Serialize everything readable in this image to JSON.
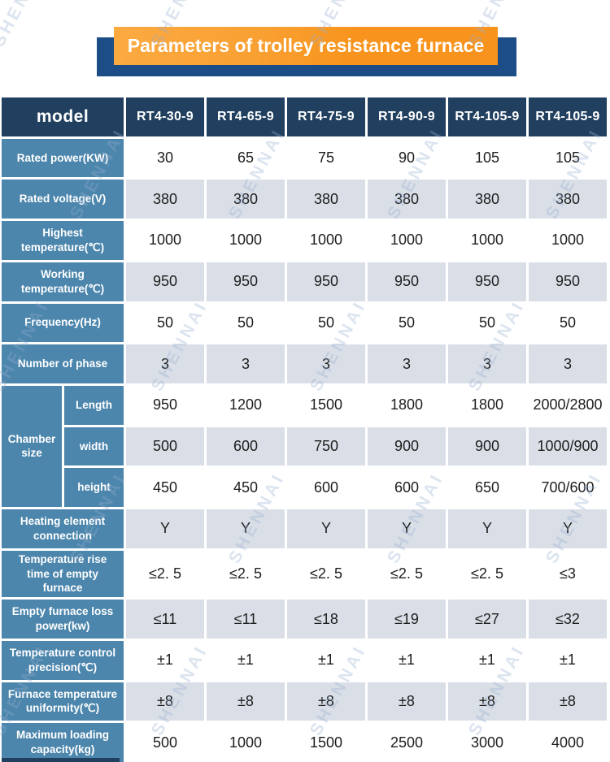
{
  "banner": {
    "title": "Parameters of trolley resistance furnace",
    "orange_color": "#f8941d",
    "backdrop_color": "#1d4d86"
  },
  "watermark": {
    "text": "SHENNAI"
  },
  "colors": {
    "header_bg": "#21405f",
    "row_label_bg": "#4c86ac",
    "striped_cell_bg": "#dadfe7",
    "plain_cell_bg": "#ffffff",
    "data_text": "#1e1e1e"
  },
  "table": {
    "header": {
      "label": "model",
      "models": [
        "RT4-30-9",
        "RT4-65-9",
        "RT4-75-9",
        "RT4-90-9",
        "RT4-105-9",
        "RT4-105-9"
      ]
    },
    "chamber_group": {
      "label": "Chamber size"
    },
    "rows": [
      {
        "label": "Rated power(KW)",
        "values": [
          "30",
          "65",
          "75",
          "90",
          "105",
          "105"
        ]
      },
      {
        "label": "Rated voltage(V)",
        "values": [
          "380",
          "380",
          "380",
          "380",
          "380",
          "380"
        ]
      },
      {
        "label": "Highest temperature(℃)",
        "values": [
          "1000",
          "1000",
          "1000",
          "1000",
          "1000",
          "1000"
        ]
      },
      {
        "label": "Working temperature(℃)",
        "values": [
          "950",
          "950",
          "950",
          "950",
          "950",
          "950"
        ]
      },
      {
        "label": "Frequency(Hz)",
        "values": [
          "50",
          "50",
          "50",
          "50",
          "50",
          "50"
        ]
      },
      {
        "label": "Number of phase",
        "values": [
          "3",
          "3",
          "3",
          "3",
          "3",
          "3"
        ]
      },
      {
        "label": "Length",
        "group": "Chamber size",
        "values": [
          "950",
          "1200",
          "1500",
          "1800",
          "1800",
          "2000/2800"
        ]
      },
      {
        "label": "width",
        "group": "Chamber size",
        "values": [
          "500",
          "600",
          "750",
          "900",
          "900",
          "1000/900"
        ]
      },
      {
        "label": "height",
        "group": "Chamber size",
        "values": [
          "450",
          "450",
          "600",
          "600",
          "650",
          "700/600"
        ]
      },
      {
        "label": "Heating element connection",
        "values": [
          "Y",
          "Y",
          "Y",
          "Y",
          "Y",
          "Y"
        ]
      },
      {
        "label": "Temperature rise time of empty furnace",
        "values": [
          "≤2. 5",
          "≤2. 5",
          "≤2. 5",
          "≤2. 5",
          "≤2. 5",
          "≤3"
        ]
      },
      {
        "label": "Empty furnace loss power(kw)",
        "values": [
          "≤11",
          "≤11",
          "≤18",
          "≤19",
          "≤27",
          "≤32"
        ]
      },
      {
        "label": "Temperature control precision(℃)",
        "values": [
          "±1",
          "±1",
          "±1",
          "±1",
          "±1",
          "±1"
        ]
      },
      {
        "label": "Furnace temperature uniformity(℃)",
        "values": [
          "±8",
          "±8",
          "±8",
          "±8",
          "±8",
          "±8"
        ]
      },
      {
        "label": "Maximum loading capacity(kg)",
        "values": [
          "500",
          "1000",
          "1500",
          "2500",
          "3000",
          "4000"
        ]
      }
    ]
  }
}
